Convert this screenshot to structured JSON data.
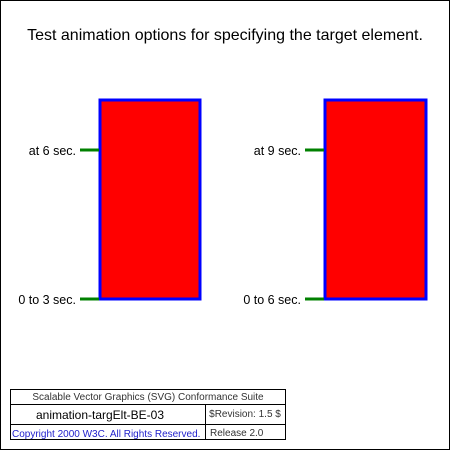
{
  "test": {
    "title": "Test animation options for specifying the target element.",
    "left": {
      "top_label": "at 6 sec.",
      "bottom_label": "0 to 3 sec."
    },
    "right": {
      "top_label": "at 9 sec.",
      "bottom_label": "0 to 6 sec."
    }
  },
  "footer": {
    "suite": "Scalable Vector Graphics (SVG) Conformance Suite",
    "test_name": "animation-targElt-BE-03",
    "revision": "$Revision: 1.5 $",
    "copyright": "Copyright 2000 W3C. All Rights Reserved.",
    "release": "Release 2.0"
  },
  "colors": {
    "rect_fill": "#ff0000",
    "rect_stroke": "#0000ff",
    "marker": "#008000",
    "copyright_text": "#2222cc"
  }
}
